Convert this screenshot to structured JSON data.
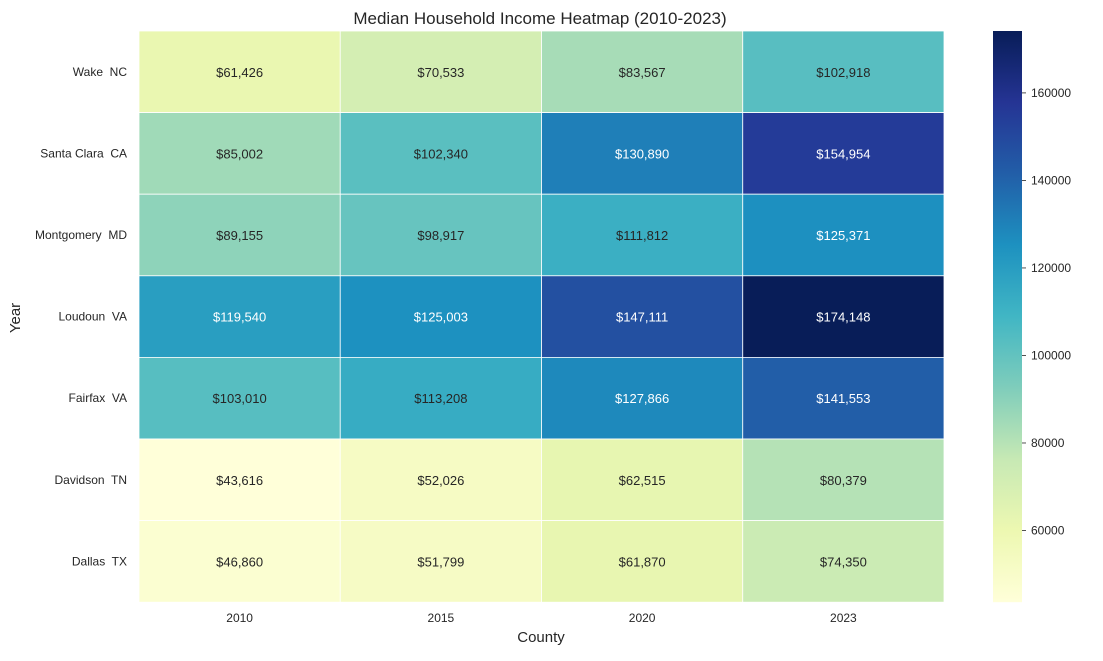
{
  "chart_data": {
    "type": "heatmap",
    "title": "Median Household Income Heatmap (2010-2023)",
    "xlabel": "County",
    "ylabel": "Year",
    "x_categories": [
      "2010",
      "2015",
      "2020",
      "2023"
    ],
    "y_categories": [
      "Wake  NC",
      "Santa Clara  CA",
      "Montgomery  MD",
      "Loudoun  VA",
      "Fairfax  VA",
      "Davidson  TN",
      "Dallas  TX"
    ],
    "values": [
      [
        61426,
        70533,
        83567,
        102918
      ],
      [
        85002,
        102340,
        130890,
        154954
      ],
      [
        89155,
        98917,
        111812,
        125371
      ],
      [
        119540,
        125003,
        147111,
        174148
      ],
      [
        103010,
        113208,
        127866,
        141553
      ],
      [
        43616,
        52026,
        62515,
        80379
      ],
      [
        46860,
        51799,
        61870,
        74350
      ]
    ],
    "cell_labels": [
      [
        "$61,426",
        "$70,533",
        "$83,567",
        "$102,918"
      ],
      [
        "$85,002",
        "$102,340",
        "$130,890",
        "$154,954"
      ],
      [
        "$89,155",
        "$98,917",
        "$111,812",
        "$125,371"
      ],
      [
        "$119,540",
        "$125,003",
        "$147,111",
        "$174,148"
      ],
      [
        "$103,010",
        "$113,208",
        "$127,866",
        "$141,553"
      ],
      [
        "$43,616",
        "$52,026",
        "$62,515",
        "$80,379"
      ],
      [
        "$46,860",
        "$51,799",
        "$61,870",
        "$74,350"
      ]
    ],
    "colorscale": "YlGnBu",
    "color_range": [
      43616,
      174148
    ],
    "colorbar_ticks": [
      60000,
      80000,
      100000,
      120000,
      140000,
      160000
    ],
    "colorbar_tick_labels": [
      "60000",
      "80000",
      "100000",
      "120000",
      "140000",
      "160000"
    ],
    "cell_border_color": "#ffffff",
    "text_color_dark": "#262626",
    "text_color_light": "#ffffff"
  }
}
